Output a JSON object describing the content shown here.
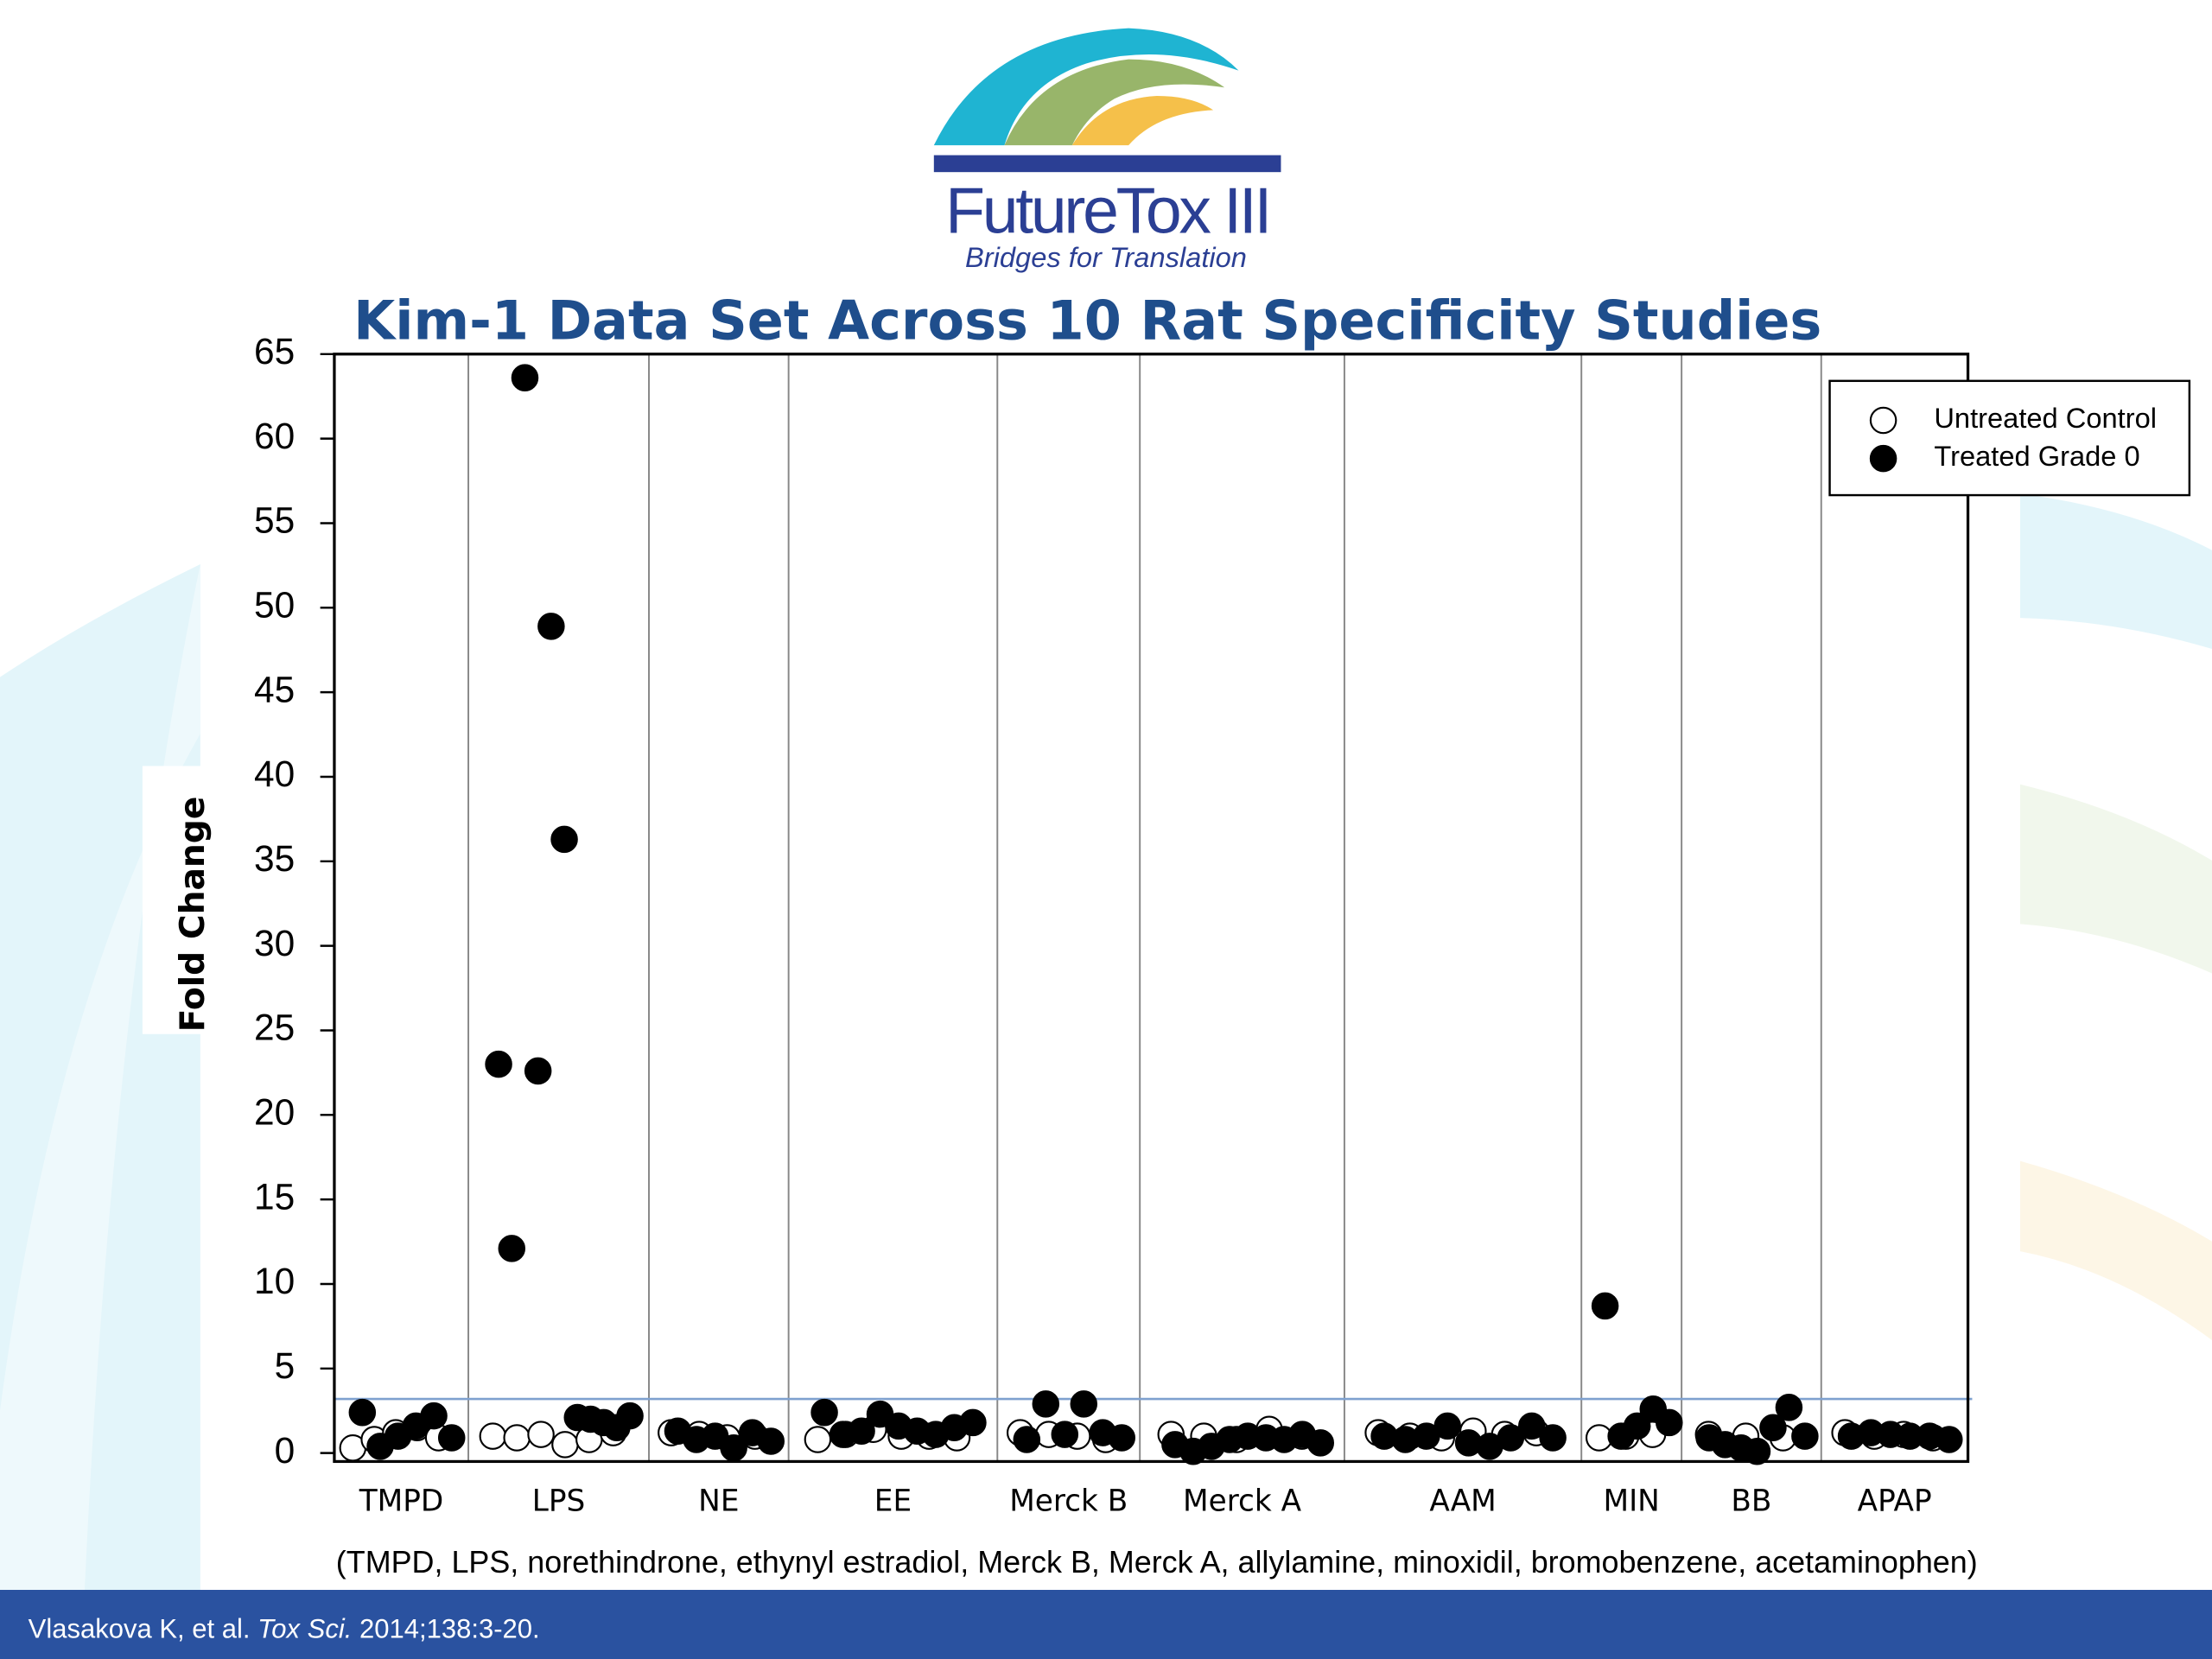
{
  "logo": {
    "name": "FutureTox III",
    "tagline": "Bridges for Translation"
  },
  "chart_data": {
    "type": "scatter",
    "title": "Kim-1 Data Set Across 10 Rat Specificity Studies",
    "y_label": "Fold Change",
    "categories": [
      "TMPD",
      "LPS",
      "NE",
      "EE",
      "Merck B",
      "Merck A",
      "AAM",
      "MIN",
      "BB",
      "APAP"
    ],
    "ylim": [
      -0.5,
      65
    ],
    "yticks": [
      0,
      5,
      10,
      15,
      20,
      25,
      30,
      35,
      40,
      45,
      50,
      55,
      60,
      65
    ],
    "threshold": 3.2,
    "threshold_color": "#7fa1cf",
    "legend": "top-right",
    "series": [
      {
        "name": "Untreated Control",
        "color": "#ffffff",
        "values": [
          [
            0.3,
            0.8,
            1.2,
            1.5,
            0.9
          ],
          [
            1.0,
            0.9,
            1.1,
            0.5,
            0.8,
            1.2
          ],
          [
            1.2,
            1.1,
            0.9,
            1.0
          ],
          [
            0.8,
            1.1,
            1.4,
            1.0,
            1.0,
            0.9
          ],
          [
            1.2,
            1.1,
            1.0,
            0.8
          ],
          [
            1.1,
            1.0,
            0.8,
            1.4,
            1.0
          ],
          [
            1.2,
            1.0,
            0.9,
            1.3,
            1.1,
            1.2
          ],
          [
            0.9,
            1.0,
            1.1
          ],
          [
            1.1,
            1.0,
            0.9
          ],
          [
            1.2,
            1.0,
            1.1,
            0.9
          ]
        ]
      },
      {
        "name": "Treated Grade 0",
        "color": "#000000",
        "values": [
          [
            2.4,
            0.4,
            1.0,
            1.6,
            2.2,
            0.9
          ],
          [
            23.0,
            12.1,
            63.6,
            22.6,
            48.9,
            36.3,
            2.1,
            2.0,
            1.8,
            1.5,
            2.2
          ],
          [
            1.3,
            0.8,
            1.0,
            0.3,
            1.2,
            0.7
          ],
          [
            2.4,
            1.1,
            1.3,
            2.3,
            1.6,
            1.3,
            1.1,
            1.5,
            1.8
          ],
          [
            0.8,
            2.9,
            1.1,
            2.9,
            1.2,
            0.9
          ],
          [
            0.5,
            0.1,
            0.4,
            0.8,
            1.0,
            0.9,
            0.8,
            1.1,
            0.6
          ],
          [
            1.0,
            0.8,
            1.0,
            1.6,
            0.6,
            0.4,
            0.9,
            1.6,
            0.9
          ],
          [
            8.7,
            1.0,
            1.6,
            2.6,
            1.8
          ],
          [
            0.9,
            0.5,
            0.3,
            0.1,
            1.5,
            2.7,
            1.0
          ],
          [
            1.0,
            1.2,
            1.1,
            1.0,
            1.0,
            0.8
          ]
        ]
      }
    ],
    "footnote": "(TMPD, LPS, norethindrone, ethynyl estradiol, Merck B, Merck A, allylamine, minoxidil, bromobenzene, acetaminophen)"
  },
  "citation": {
    "authors": "Vlasakova K, et al.",
    "journal": "Tox Sci.",
    "details": "2014;138:3-20."
  }
}
